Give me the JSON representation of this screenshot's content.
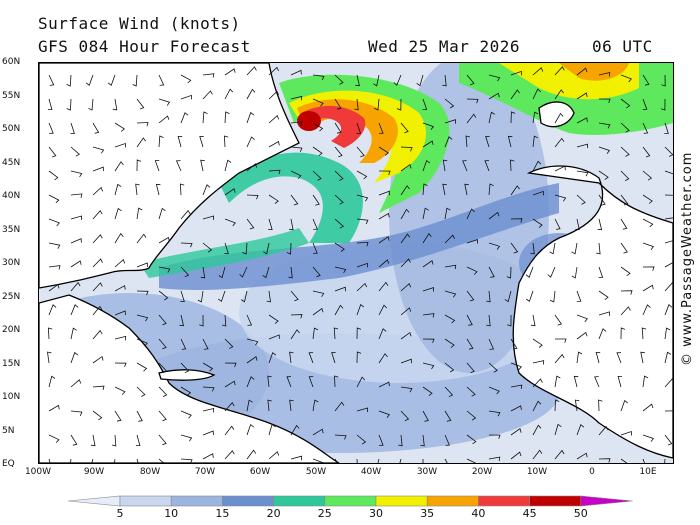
{
  "header": {
    "title": "Surface Wind (knots)",
    "forecast": "GFS 084 Hour Forecast",
    "date": "Wed 25 Mar 2026",
    "time": "06 UTC"
  },
  "credit": "© www.PassageWeather.com",
  "axes": {
    "lat_labels": [
      "60N",
      "55N",
      "50N",
      "45N",
      "40N",
      "35N",
      "30N",
      "25N",
      "20N",
      "15N",
      "10N",
      "5N",
      "EQ"
    ],
    "lon_labels": [
      "100W",
      "90W",
      "80W",
      "70W",
      "60W",
      "50W",
      "40W",
      "30W",
      "20W",
      "10W",
      "0",
      "10E"
    ]
  },
  "legend": {
    "labels": [
      "5",
      "10",
      "15",
      "20",
      "25",
      "30",
      "35",
      "40",
      "45",
      "50"
    ],
    "colors": [
      "#e6ecf8",
      "#c8d6ee",
      "#9cb4e0",
      "#6c8fd0",
      "#2ec89a",
      "#5ee85e",
      "#f0f000",
      "#f7a400",
      "#f03a3a",
      "#c00000",
      "#c800c8"
    ]
  },
  "colors": {
    "land": "#ffffff",
    "coast": "#000000",
    "ocean_light": "#dbe3f2",
    "calm": "#f5f7fb"
  }
}
